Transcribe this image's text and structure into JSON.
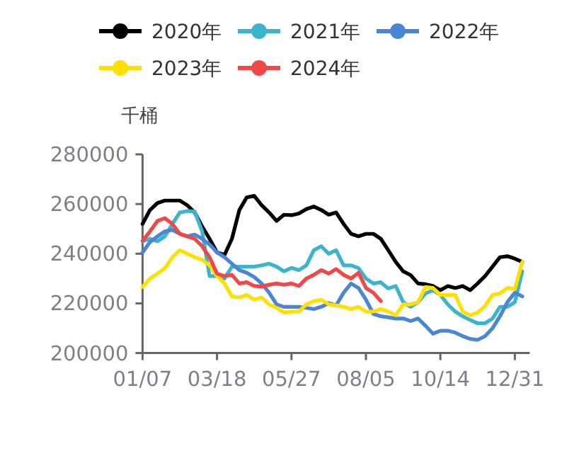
{
  "chart_data": {
    "type": "line",
    "ylabel": "千桶",
    "legend": "top",
    "categories": [
      "01/07",
      null,
      null,
      null,
      null,
      null,
      null,
      null,
      null,
      null,
      "03/18",
      null,
      null,
      null,
      null,
      null,
      null,
      null,
      null,
      null,
      "05/27",
      null,
      null,
      null,
      null,
      null,
      null,
      null,
      null,
      null,
      "08/05",
      null,
      null,
      null,
      null,
      null,
      null,
      null,
      null,
      null,
      "10/14",
      null,
      null,
      null,
      null,
      null,
      null,
      null,
      null,
      null,
      "12/31",
      null
    ],
    "ylim": [
      200000,
      280000
    ],
    "yticks": [
      200000,
      220000,
      240000,
      260000,
      280000
    ],
    "series": [
      {
        "name": "2020年",
        "color": "#000000",
        "values": [
          252000,
          257600,
          260400,
          261400,
          261400,
          261400,
          259500,
          256600,
          251000,
          246000,
          240500,
          239500,
          246000,
          257600,
          262700,
          263300,
          259500,
          256600,
          253200,
          255700,
          255500,
          256200,
          258000,
          259000,
          257600,
          255700,
          256600,
          252000,
          248000,
          247000,
          248000,
          248000,
          246000,
          241400,
          236700,
          232900,
          231400,
          228000,
          227700,
          227000,
          225300,
          227000,
          226200,
          227000,
          225300,
          228000,
          231000,
          234800,
          238600,
          239000,
          238000,
          236700
        ]
      },
      {
        "name": "2021年",
        "color": "#3cb4cc",
        "values": [
          245000,
          246000,
          245000,
          247000,
          252000,
          256600,
          257200,
          257000,
          249000,
          231000,
          231000,
          230000,
          234800,
          234800,
          234800,
          234800,
          235300,
          236000,
          234800,
          232900,
          234300,
          233400,
          235300,
          241400,
          243000,
          240000,
          241400,
          235300,
          235300,
          234200,
          230000,
          228000,
          228500,
          226000,
          227000,
          220500,
          218600,
          220500,
          224000,
          225300,
          223400,
          219600,
          216700,
          214800,
          213300,
          212000,
          212000,
          213900,
          218600,
          218600,
          220500,
          232900
        ]
      },
      {
        "name": "2022年",
        "color": "#4a86d4",
        "values": [
          240500,
          244700,
          247000,
          249000,
          249600,
          248000,
          247000,
          247700,
          246000,
          243700,
          240500,
          238600,
          236000,
          233400,
          232300,
          230600,
          228000,
          224300,
          219600,
          218600,
          218600,
          218600,
          218200,
          217700,
          218600,
          220100,
          219200,
          224300,
          228000,
          226200,
          221500,
          215800,
          214800,
          214400,
          213900,
          213900,
          212900,
          213900,
          211000,
          207800,
          209000,
          209000,
          208200,
          206800,
          205700,
          205300,
          206800,
          210000,
          214800,
          220500,
          224300,
          222800
        ]
      },
      {
        "name": "2023年",
        "color": "#ffe000",
        "values": [
          226600,
          230000,
          232000,
          234200,
          238600,
          241400,
          240000,
          238600,
          237600,
          235300,
          231000,
          228000,
          222800,
          222400,
          223400,
          221500,
          222400,
          219600,
          218200,
          216300,
          216700,
          216700,
          219600,
          220900,
          221500,
          219600,
          219200,
          218600,
          217700,
          218600,
          216700,
          216700,
          217700,
          216700,
          215200,
          219600,
          219600,
          220500,
          226600,
          226200,
          223400,
          223400,
          223400,
          216700,
          215200,
          216300,
          219000,
          223400,
          224000,
          226200,
          225800,
          236700
        ]
      },
      {
        "name": "2024年",
        "color": "#f04848",
        "values": [
          245200,
          249000,
          253200,
          254300,
          252000,
          248000,
          247000,
          246000,
          243000,
          238600,
          232000,
          231000,
          231500,
          228000,
          228500,
          227000,
          226800,
          227500,
          228000,
          227500,
          228000,
          227000,
          230000,
          231500,
          233400,
          232000,
          233800,
          231500,
          230000,
          232300,
          226200,
          224300,
          220900,
          null,
          null,
          null,
          null,
          null,
          null,
          null,
          null,
          null,
          null,
          null,
          null,
          null,
          null,
          null,
          null,
          null,
          null,
          null
        ]
      }
    ]
  }
}
